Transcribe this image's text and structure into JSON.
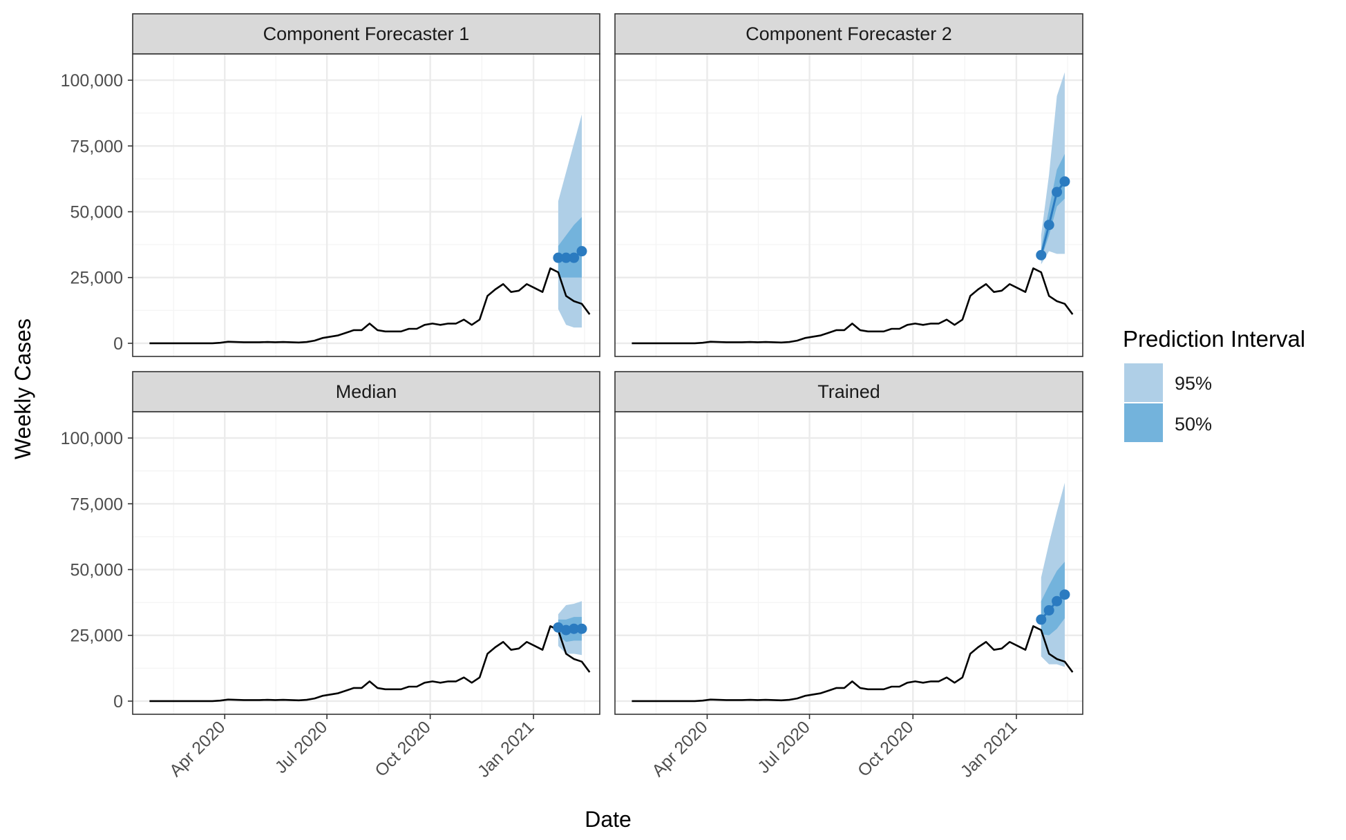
{
  "figure": {
    "xlabel": "Date",
    "ylabel": "Weekly Cases"
  },
  "legend": {
    "title": "Prediction Interval",
    "items": [
      {
        "label": "95%",
        "color": "#afcfe7"
      },
      {
        "label": "50%",
        "color": "#73b3dc"
      }
    ]
  },
  "colors": {
    "observed_line": "#000000",
    "forecast_point": "#2b7bc0",
    "band_95": "#afcfe7",
    "band_50": "#73b3dc",
    "strip_fill": "#d9d9d9",
    "grid_major": "#ebebeb",
    "grid_minor": "#f4f4f4"
  },
  "chart_data": {
    "type": "line",
    "facet_layout": "2x2 grid",
    "x_axis": {
      "range": [
        "2020-01-10",
        "2021-03-01"
      ],
      "major_ticks": [
        "2020-04-01",
        "2020-07-01",
        "2020-10-01",
        "2021-01-01"
      ],
      "tick_labels": [
        "Apr 2020",
        "Jul 2020",
        "Oct 2020",
        "Jan 2021"
      ]
    },
    "y_axis": {
      "range": [
        -5000,
        110000
      ],
      "ticks": [
        0,
        25000,
        50000,
        75000,
        100000
      ],
      "tick_labels": [
        "0",
        "25,000",
        "50,000",
        "75,000",
        "100,000"
      ]
    },
    "grid": true,
    "legend_position": "right",
    "observed": {
      "dates": [
        "2020-01-25",
        "2020-02-01",
        "2020-02-08",
        "2020-02-15",
        "2020-02-22",
        "2020-02-29",
        "2020-03-07",
        "2020-03-14",
        "2020-03-21",
        "2020-03-28",
        "2020-04-04",
        "2020-04-11",
        "2020-04-18",
        "2020-04-25",
        "2020-05-02",
        "2020-05-09",
        "2020-05-16",
        "2020-05-23",
        "2020-05-30",
        "2020-06-06",
        "2020-06-13",
        "2020-06-20",
        "2020-06-27",
        "2020-07-04",
        "2020-07-11",
        "2020-07-18",
        "2020-07-25",
        "2020-08-01",
        "2020-08-08",
        "2020-08-15",
        "2020-08-22",
        "2020-08-29",
        "2020-09-05",
        "2020-09-12",
        "2020-09-19",
        "2020-09-26",
        "2020-10-03",
        "2020-10-10",
        "2020-10-17",
        "2020-10-24",
        "2020-10-31",
        "2020-11-07",
        "2020-11-14",
        "2020-11-21",
        "2020-11-28",
        "2020-12-05",
        "2020-12-12",
        "2020-12-19",
        "2020-12-26",
        "2021-01-02",
        "2021-01-09",
        "2021-01-16",
        "2021-01-23",
        "2021-01-30",
        "2021-02-06",
        "2021-02-13",
        "2021-02-20"
      ],
      "values": [
        0,
        0,
        0,
        0,
        0,
        0,
        0,
        0,
        0,
        200,
        600,
        500,
        400,
        400,
        400,
        500,
        400,
        500,
        400,
        300,
        500,
        1000,
        2000,
        2500,
        3000,
        4000,
        5000,
        5000,
        7500,
        5000,
        4500,
        4500,
        4500,
        5500,
        5500,
        7000,
        7500,
        7000,
        7500,
        7500,
        9000,
        7000,
        9000,
        18000,
        20500,
        22500,
        19500,
        20000,
        22500,
        21000,
        19500,
        28500,
        27000,
        18000,
        16000,
        15000,
        11000
      ]
    },
    "panels": [
      {
        "title": "Component Forecaster 1",
        "forecast": {
          "dates": [
            "2021-01-23",
            "2021-01-30",
            "2021-02-06",
            "2021-02-13"
          ],
          "median": [
            32500,
            32500,
            32500,
            35000
          ],
          "lower_50": [
            25000,
            25000,
            25000,
            25000
          ],
          "upper_50": [
            37000,
            41000,
            45000,
            48000
          ],
          "lower_95": [
            13000,
            7000,
            6000,
            6000
          ],
          "upper_95": [
            54000,
            65000,
            76000,
            87000
          ]
        }
      },
      {
        "title": "Component Forecaster 2",
        "forecast": {
          "dates": [
            "2021-01-23",
            "2021-01-30",
            "2021-02-06",
            "2021-02-13"
          ],
          "median": [
            33500,
            45000,
            57500,
            61500
          ],
          "lower_50": [
            32000,
            41000,
            52000,
            55000
          ],
          "upper_50": [
            36000,
            51000,
            66000,
            72000
          ],
          "lower_95": [
            30000,
            35000,
            34000,
            34000
          ],
          "upper_95": [
            41000,
            64000,
            94000,
            103000
          ]
        }
      },
      {
        "title": "Median",
        "forecast": {
          "dates": [
            "2021-01-23",
            "2021-01-30",
            "2021-02-06",
            "2021-02-13"
          ],
          "median": [
            28000,
            27000,
            27500,
            27500
          ],
          "lower_50": [
            25000,
            22500,
            23000,
            23000
          ],
          "upper_50": [
            31000,
            31000,
            32000,
            32000
          ],
          "lower_95": [
            21000,
            18000,
            18000,
            17500
          ],
          "upper_95": [
            33000,
            36500,
            37000,
            38000
          ]
        }
      },
      {
        "title": "Trained",
        "forecast": {
          "dates": [
            "2021-01-23",
            "2021-01-30",
            "2021-02-06",
            "2021-02-13"
          ],
          "median": [
            31000,
            34500,
            38000,
            40500
          ],
          "lower_50": [
            25500,
            25000,
            27500,
            31500
          ],
          "upper_50": [
            38000,
            44000,
            49500,
            53000
          ],
          "lower_95": [
            17000,
            14000,
            14000,
            13000
          ],
          "upper_95": [
            47000,
            60000,
            72000,
            83000
          ]
        }
      }
    ]
  }
}
